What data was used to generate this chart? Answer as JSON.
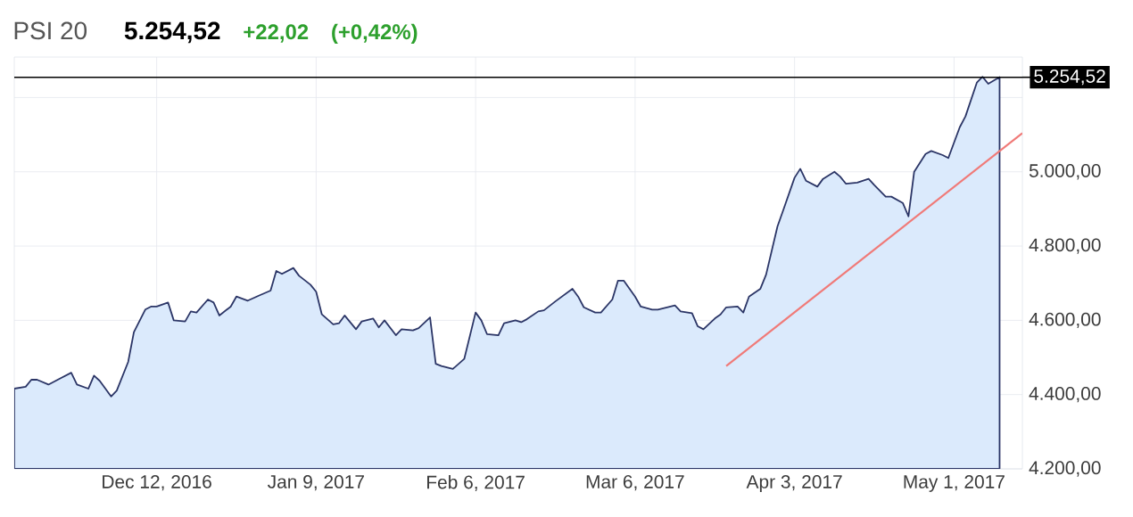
{
  "chart_data": {
    "type": "area",
    "title": "PSI 20",
    "subtitle": "5.254,52",
    "annotations": [
      "+22,02",
      "(+0,42%)"
    ],
    "xlim": [
      "2016-11-17",
      "2017-05-13"
    ],
    "xticks": [
      {
        "value": "2016-12-12",
        "label": "Dec 12, 2016"
      },
      {
        "value": "2017-01-09",
        "label": "Jan 9, 2017"
      },
      {
        "value": "2017-02-06",
        "label": "Feb 6, 2017"
      },
      {
        "value": "2017-03-06",
        "label": "Mar 6, 2017"
      },
      {
        "value": "2017-04-03",
        "label": "Apr 3, 2017"
      },
      {
        "value": "2017-05-01",
        "label": "May 1, 2017"
      }
    ],
    "ylim": [
      4200,
      5309
    ],
    "yticks": [
      {
        "value": 4200,
        "label": "4.200,00"
      },
      {
        "value": 4400,
        "label": "4.400,00"
      },
      {
        "value": 4600,
        "label": "4.600,00"
      },
      {
        "value": 4800,
        "label": "4.800,00"
      },
      {
        "value": 5000,
        "label": "5.000,00"
      },
      {
        "value": 5200,
        "label": null
      }
    ],
    "grid": true,
    "ref_lines": [
      {
        "axis": "y",
        "value": 5254.52,
        "label": "5.254,52",
        "color": "#000000"
      }
    ],
    "series": [
      {
        "color": "#dbeafc",
        "x": [
          "2016-11-17",
          "2016-11-19",
          "2016-11-20",
          "2016-11-21",
          "2016-11-23",
          "2016-11-25",
          "2016-11-27",
          "2016-11-28",
          "2016-11-30",
          "2016-12-01",
          "2016-12-02",
          "2016-12-04",
          "2016-12-05",
          "2016-12-07",
          "2016-12-08",
          "2016-12-10",
          "2016-12-11",
          "2016-12-12",
          "2016-12-14",
          "2016-12-15",
          "2016-12-17",
          "2016-12-18",
          "2016-12-19",
          "2016-12-21",
          "2016-12-22",
          "2016-12-23",
          "2016-12-25",
          "2016-12-26",
          "2016-12-28",
          "2016-12-30",
          "2017-01-01",
          "2017-01-02",
          "2017-01-03",
          "2017-01-05",
          "2017-01-06",
          "2017-01-08",
          "2017-01-09",
          "2017-01-10",
          "2017-01-12",
          "2017-01-13",
          "2017-01-14",
          "2017-01-16",
          "2017-01-17",
          "2017-01-19",
          "2017-01-20",
          "2017-01-21",
          "2017-01-23",
          "2017-01-24",
          "2017-01-26",
          "2017-01-27",
          "2017-01-29",
          "2017-01-30",
          "2017-01-31",
          "2017-02-02",
          "2017-02-04",
          "2017-02-06",
          "2017-02-07",
          "2017-02-08",
          "2017-02-10",
          "2017-02-11",
          "2017-02-13",
          "2017-02-14",
          "2017-02-15",
          "2017-02-17",
          "2017-02-18",
          "2017-02-20",
          "2017-02-23",
          "2017-02-24",
          "2017-02-25",
          "2017-02-27",
          "2017-02-28",
          "2017-03-02",
          "2017-03-03",
          "2017-03-04",
          "2017-03-06",
          "2017-03-07",
          "2017-03-09",
          "2017-03-10",
          "2017-03-13",
          "2017-03-14",
          "2017-03-16",
          "2017-03-17",
          "2017-03-18",
          "2017-03-20",
          "2017-03-21",
          "2017-03-22",
          "2017-03-24",
          "2017-03-25",
          "2017-03-26",
          "2017-03-28",
          "2017-03-29",
          "2017-03-31",
          "2017-04-01",
          "2017-04-03",
          "2017-04-04",
          "2017-04-05",
          "2017-04-07",
          "2017-04-08",
          "2017-04-10",
          "2017-04-11",
          "2017-04-12",
          "2017-04-14",
          "2017-04-16",
          "2017-04-17",
          "2017-04-19",
          "2017-04-20",
          "2017-04-22",
          "2017-04-23",
          "2017-04-24",
          "2017-04-26",
          "2017-04-27",
          "2017-04-29",
          "2017-04-30",
          "2017-05-02",
          "2017-05-03",
          "2017-05-05",
          "2017-05-06",
          "2017-05-07",
          "2017-05-09"
        ],
        "values": [
          4416,
          4421,
          4440,
          4440,
          4427,
          4443,
          4459,
          4427,
          4416,
          4451,
          4437,
          4395,
          4411,
          4488,
          4568,
          4629,
          4637,
          4637,
          4648,
          4600,
          4597,
          4624,
          4621,
          4656,
          4648,
          4613,
          4637,
          4664,
          4653,
          4667,
          4680,
          4733,
          4725,
          4741,
          4720,
          4696,
          4677,
          4616,
          4589,
          4592,
          4613,
          4576,
          4597,
          4605,
          4581,
          4600,
          4560,
          4576,
          4573,
          4579,
          4608,
          4483,
          4477,
          4469,
          4496,
          4621,
          4600,
          4563,
          4560,
          4592,
          4600,
          4595,
          4603,
          4624,
          4627,
          4651,
          4685,
          4664,
          4635,
          4621,
          4621,
          4656,
          4707,
          4707,
          4664,
          4637,
          4629,
          4629,
          4640,
          4624,
          4619,
          4584,
          4576,
          4605,
          4616,
          4635,
          4637,
          4621,
          4664,
          4685,
          4723,
          4853,
          4896,
          4984,
          5008,
          4976,
          4960,
          4981,
          5000,
          4987,
          4968,
          4971,
          4981,
          4964,
          4933,
          4933,
          4916,
          4880,
          5000,
          5048,
          5056,
          5045,
          5037,
          5120,
          5149,
          5240,
          5256,
          5237,
          5255
        ]
      },
      {
        "type": "line",
        "color": "#f07a78",
        "x": [
          "2017-03-22",
          "2017-05-13"
        ],
        "values": [
          4477,
          5104
        ]
      }
    ]
  }
}
